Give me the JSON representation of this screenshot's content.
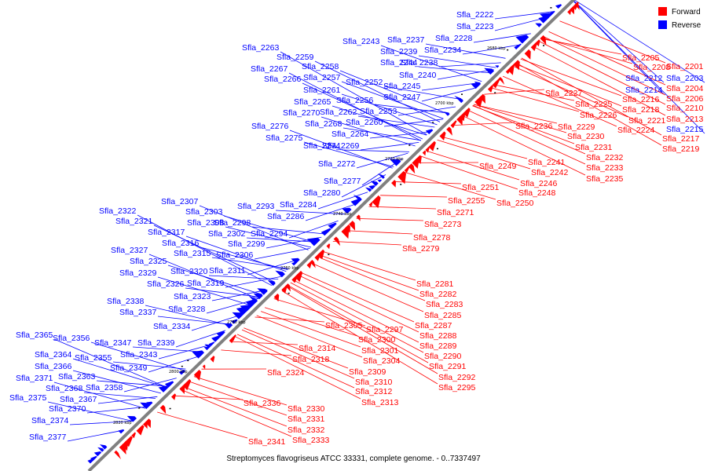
{
  "legend": {
    "forward": {
      "label": "Forward",
      "color": "#ff0000"
    },
    "reverse": {
      "label": "Reverse",
      "color": "#0000ff"
    }
  },
  "caption": "Streptomyces flavogriseus ATCC 33331, complete genome. - 0..7337497",
  "axis_color": "#808080",
  "kbp_ticks": [
    "2680 kbp",
    "2700 kbp",
    "2720 kbp",
    "2740 kbp",
    "2760 kbp",
    "2780 kbp",
    "2800 kbp",
    "2820 kbp"
  ],
  "reverse_labels": [
    "Sfla_2222",
    "Sfla_2223",
    "Sfla_2228",
    "Sfla_2234",
    "Sfla_2237",
    "Sfla_2243",
    "Sfla_2239",
    "Sfla_2244",
    "Sfla_2238",
    "Sfla_2263",
    "Sfla_2259",
    "Sfla_2267",
    "Sfla_2258",
    "Sfla_2266",
    "Sfla_2257",
    "Sfla_2261",
    "Sfla_2252",
    "Sfla_2240",
    "Sfla_2245",
    "Sfla_2265",
    "Sfla_2256",
    "Sfla_2247",
    "Sfla_2270",
    "Sfla_2262",
    "Sfla_2253",
    "Sfla_2268",
    "Sfla_2260",
    "Sfla_2276",
    "Sfla_2264",
    "Sfla_2275",
    "Sfla_2274",
    "Sfla_2269",
    "Sfla_2272",
    "Sfla_2277",
    "Sfla_2280",
    "Sfla_2307",
    "Sfla_2284",
    "Sfla_2293",
    "Sfla_2303",
    "Sfla_2322",
    "Sfla_2286",
    "Sfla_2308",
    "Sfla_2298",
    "Sfla_2321",
    "Sfla_2302",
    "Sfla_2294",
    "Sfla_2317",
    "Sfla_2316",
    "Sfla_2299",
    "Sfla_2315",
    "Sfla_2306",
    "Sfla_2327",
    "Sfla_2325",
    "Sfla_2320",
    "Sfla_2311",
    "Sfla_2329",
    "Sfla_2326",
    "Sfla_2319",
    "Sfla_2323",
    "Sfla_2338",
    "Sfla_2328",
    "Sfla_2337",
    "Sfla_2334",
    "Sfla_2365",
    "Sfla_2356",
    "Sfla_2347",
    "Sfla_2339",
    "Sfla_2343",
    "Sfla_2364",
    "Sfla_2355",
    "Sfla_2366",
    "Sfla_2349",
    "Sfla_2363",
    "Sfla_2371",
    "Sfla_2358",
    "Sfla_2368",
    "Sfla_2375",
    "Sfla_2367",
    "Sfla_2370",
    "Sfla_2374",
    "Sfla_2377",
    "Sfla_2212",
    "Sfla_2203",
    "Sfla_2214",
    "Sfla_2215"
  ],
  "forward_labels": [
    "Sfla_2205",
    "Sfla_2208",
    "Sfla_2201",
    "Sfla_2204",
    "Sfla_2206",
    "Sfla_2210",
    "Sfla_2216",
    "Sfla_2218",
    "Sfla_2213",
    "Sfla_2221",
    "Sfla_2217",
    "Sfla_2219",
    "Sfla_2224",
    "Sfla_2227",
    "Sfla_2225",
    "Sfla_2226",
    "Sfla_2236",
    "Sfla_2229",
    "Sfla_2230",
    "Sfla_2231",
    "Sfla_2232",
    "Sfla_2233",
    "Sfla_2235",
    "Sfla_2241",
    "Sfla_2249",
    "Sfla_2242",
    "Sfla_2246",
    "Sfla_2248",
    "Sfla_2251",
    "Sfla_2250",
    "Sfla_2255",
    "Sfla_2271",
    "Sfla_2273",
    "Sfla_2278",
    "Sfla_2279",
    "Sfla_2281",
    "Sfla_2282",
    "Sfla_2283",
    "Sfla_2285",
    "Sfla_2287",
    "Sfla_2305",
    "Sfla_2297",
    "Sfla_2288",
    "Sfla_2300",
    "Sfla_2289",
    "Sfla_2314",
    "Sfla_2301",
    "Sfla_2290",
    "Sfla_2318",
    "Sfla_2304",
    "Sfla_2291",
    "Sfla_2324",
    "Sfla_2309",
    "Sfla_2292",
    "Sfla_2310",
    "Sfla_2295",
    "Sfla_2312",
    "Sfla_2313",
    "Sfla_2336",
    "Sfla_2330",
    "Sfla_2331",
    "Sfla_2332",
    "Sfla_2341",
    "Sfla_2333"
  ]
}
